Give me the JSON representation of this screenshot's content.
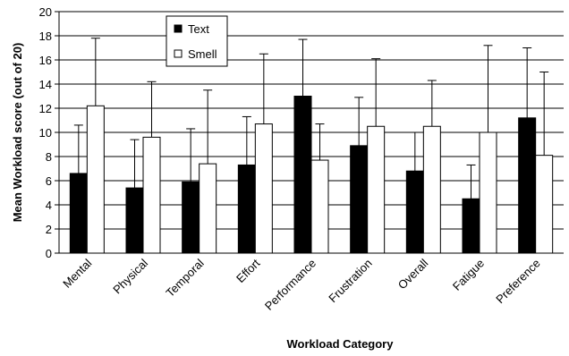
{
  "chart_data": {
    "type": "bar",
    "title": "",
    "xlabel": "Workload Category",
    "ylabel": "Mean Workload score (out of 20)",
    "ylim": [
      0,
      20
    ],
    "yticks": [
      0,
      2,
      4,
      6,
      8,
      10,
      12,
      14,
      16,
      18,
      20
    ],
    "grid": true,
    "legend_position": "top-left",
    "categories": [
      "Mental",
      "Physical",
      "Temporal",
      "Effort",
      "Performance",
      "Frustration",
      "Overall",
      "Fatigue",
      "Preference"
    ],
    "series": [
      {
        "name": "Text",
        "color": "#000000",
        "values": [
          6.6,
          5.4,
          5.9,
          7.3,
          13.0,
          8.9,
          6.8,
          4.5,
          11.2
        ],
        "error_upper": [
          10.6,
          9.4,
          10.3,
          11.3,
          17.7,
          12.9,
          10.0,
          7.3,
          17.0
        ]
      },
      {
        "name": "Smell",
        "color": "#ffffff",
        "values": [
          12.2,
          9.6,
          7.4,
          10.7,
          7.7,
          10.5,
          10.5,
          10.0,
          8.1
        ],
        "error_upper": [
          17.8,
          14.2,
          13.5,
          16.5,
          10.7,
          16.1,
          14.3,
          17.2,
          15.0
        ]
      }
    ]
  }
}
